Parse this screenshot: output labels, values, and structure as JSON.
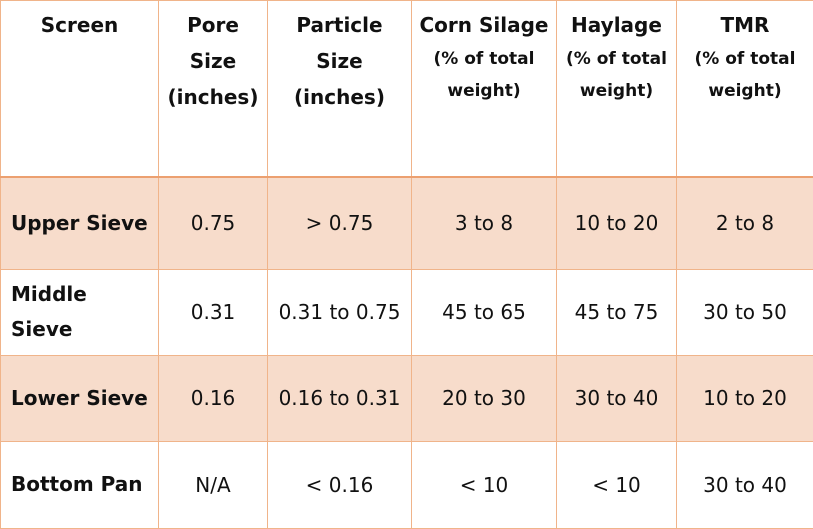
{
  "table": {
    "header": [
      [
        "Screen"
      ],
      [
        "Pore",
        "Size",
        "(inches)"
      ],
      [
        "Particle",
        "Size",
        "(inches)"
      ],
      [
        "Corn Silage",
        "(% of total",
        "weight)"
      ],
      [
        "Haylage",
        "(% of total",
        "weight)"
      ],
      [
        "TMR",
        "(% of total",
        "weight)"
      ]
    ],
    "rows": [
      [
        "Upper Sieve",
        "0.75",
        "> 0.75",
        "3 to 8",
        "10 to 20",
        "2 to 8"
      ],
      [
        "Middle Sieve",
        "0.31",
        "0.31 to 0.75",
        "45 to 65",
        "45 to 75",
        "30 to 50"
      ],
      [
        "Lower Sieve",
        "0.16",
        "0.16 to 0.31",
        "20 to 30",
        "30 to 40",
        "10 to 20"
      ],
      [
        "Bottom Pan",
        "N/A",
        "< 0.16",
        "< 10",
        "< 10",
        "30 to 40"
      ]
    ]
  }
}
